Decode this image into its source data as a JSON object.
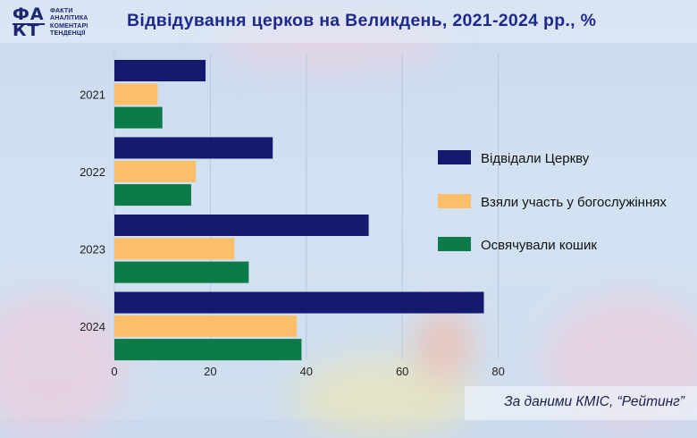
{
  "header": {
    "logo_mark_top": "ФА",
    "logo_mark_bottom": "КТ",
    "logo_lines": [
      "ФАКТИ",
      "АНАЛІТИКА",
      "КОМЕНТАРІ",
      "ТЕНДЕНЦІЇ"
    ]
  },
  "source": "За даними КМІС, “Рейтинг”",
  "colors": {
    "series_1": "#141a6e",
    "series_2": "#fbbf69",
    "series_3": "#0d7a4a",
    "title": "#1e2a8a"
  },
  "chart_data": {
    "type": "bar",
    "orientation": "horizontal",
    "title": "Відвідування церков на Великдень, 2021-2024 рр., %",
    "categories": [
      "2021",
      "2022",
      "2023",
      "2024"
    ],
    "series": [
      {
        "name": "Відвідали Церкву",
        "values": [
          19,
          33,
          53,
          77
        ]
      },
      {
        "name": "Взяли участь у богослужіннях",
        "values": [
          9,
          17,
          25,
          38
        ]
      },
      {
        "name": "Освячували кошик",
        "values": [
          10,
          16,
          28,
          39
        ]
      }
    ],
    "xlim": [
      0,
      80
    ],
    "xticks": [
      "0",
      "20",
      "40",
      "60",
      "80"
    ],
    "grid": true,
    "legend_position": "right"
  }
}
